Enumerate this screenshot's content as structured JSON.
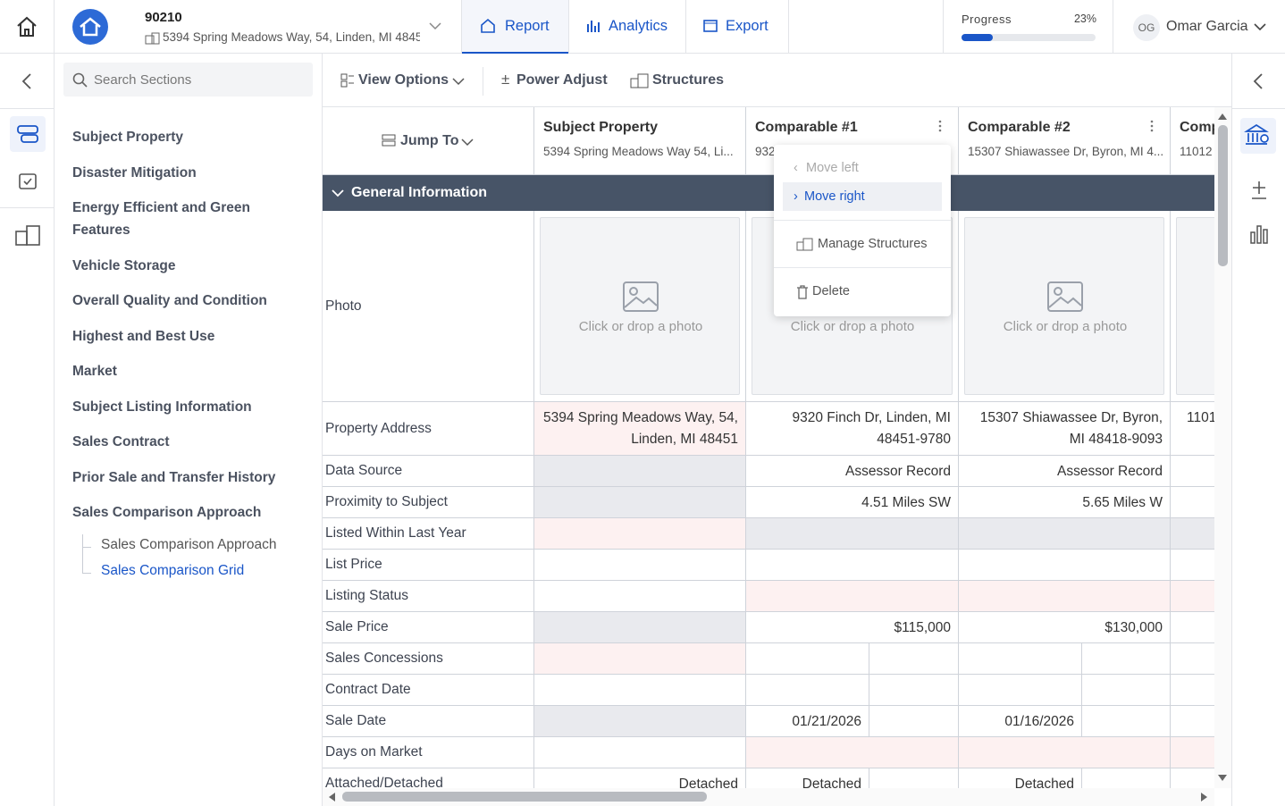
{
  "header": {
    "file_number": "90210",
    "address": "5394 Spring Meadows Way, 54, Linden, MI 4845",
    "tabs": [
      "Report",
      "Analytics",
      "Export"
    ],
    "progress": {
      "label": "Progress",
      "value": 23,
      "value_label": "23%"
    },
    "user_initials": "OG",
    "user_name": "Omar Garcia"
  },
  "sidebar": {
    "search_placeholder": "Search Sections",
    "sections": [
      "Subject Property",
      "Disaster Mitigation",
      "Energy Efficient and Green Features",
      "Vehicle Storage",
      "Overall Quality and Condition",
      "Highest and Best Use",
      "Market",
      "Subject Listing Information",
      "Sales Contract",
      "Prior Sale and Transfer History",
      "Sales Comparison Approach"
    ],
    "subsections": [
      "Sales Comparison Approach",
      "Sales Comparison Grid"
    ]
  },
  "toolbar": {
    "items": [
      "View Options",
      "Power Adjust",
      "Structures"
    ],
    "jump_to": "Jump To"
  },
  "grid": {
    "columns": [
      {
        "title": "Subject Property",
        "subtitle": "5394 Spring Meadows Way 54, Li..."
      },
      {
        "title": "Comparable #1",
        "subtitle": "932"
      },
      {
        "title": "Comparable #2",
        "subtitle": "15307 Shiawassee Dr, Byron, MI 4..."
      },
      {
        "title": "Comp",
        "subtitle": "11012"
      }
    ],
    "section": "General Information",
    "photo_label": "Photo",
    "photo_placeholder": "Click or drop a photo",
    "rows": [
      {
        "label": "Property Address",
        "cells": [
          [
            "5394 Spring Meadows Way, 54,",
            "Linden, MI 48451"
          ],
          [
            "9320 Finch Dr, Linden, MI",
            "48451-9780"
          ],
          [
            "15307 Shiawassee Dr, Byron,",
            "MI 48418-9093"
          ],
          [
            "1101"
          ]
        ]
      },
      {
        "label": "Data Source",
        "cells": [
          null,
          "Assessor Record",
          "Assessor Record",
          null
        ]
      },
      {
        "label": "Proximity to Subject",
        "cells": [
          null,
          "4.51 Miles SW",
          "5.65 Miles W",
          null
        ]
      },
      {
        "label": "Listed Within Last Year",
        "cells": [
          null,
          null,
          null,
          null
        ]
      },
      {
        "label": "List Price",
        "cells": [
          null,
          null,
          null,
          null
        ]
      },
      {
        "label": "Listing Status",
        "cells": [
          null,
          null,
          null,
          null
        ]
      },
      {
        "label": "Sale Price",
        "cells": [
          null,
          "$115,000",
          "$130,000",
          null
        ]
      },
      {
        "label": "Sales Concessions",
        "cells": [
          null,
          null,
          null,
          null
        ]
      },
      {
        "label": "Contract Date",
        "cells": [
          null,
          null,
          null,
          null
        ]
      },
      {
        "label": "Sale Date",
        "cells": [
          null,
          "01/21/2026",
          "01/16/2026",
          null
        ]
      },
      {
        "label": "Days on Market",
        "cells": [
          null,
          null,
          null,
          null
        ]
      },
      {
        "label": "Attached/Detached",
        "cells": [
          "Detached",
          "Detached",
          "Detached",
          null
        ]
      }
    ]
  },
  "menu": [
    "Move left",
    "Move right",
    "Manage Structures",
    "Delete"
  ]
}
